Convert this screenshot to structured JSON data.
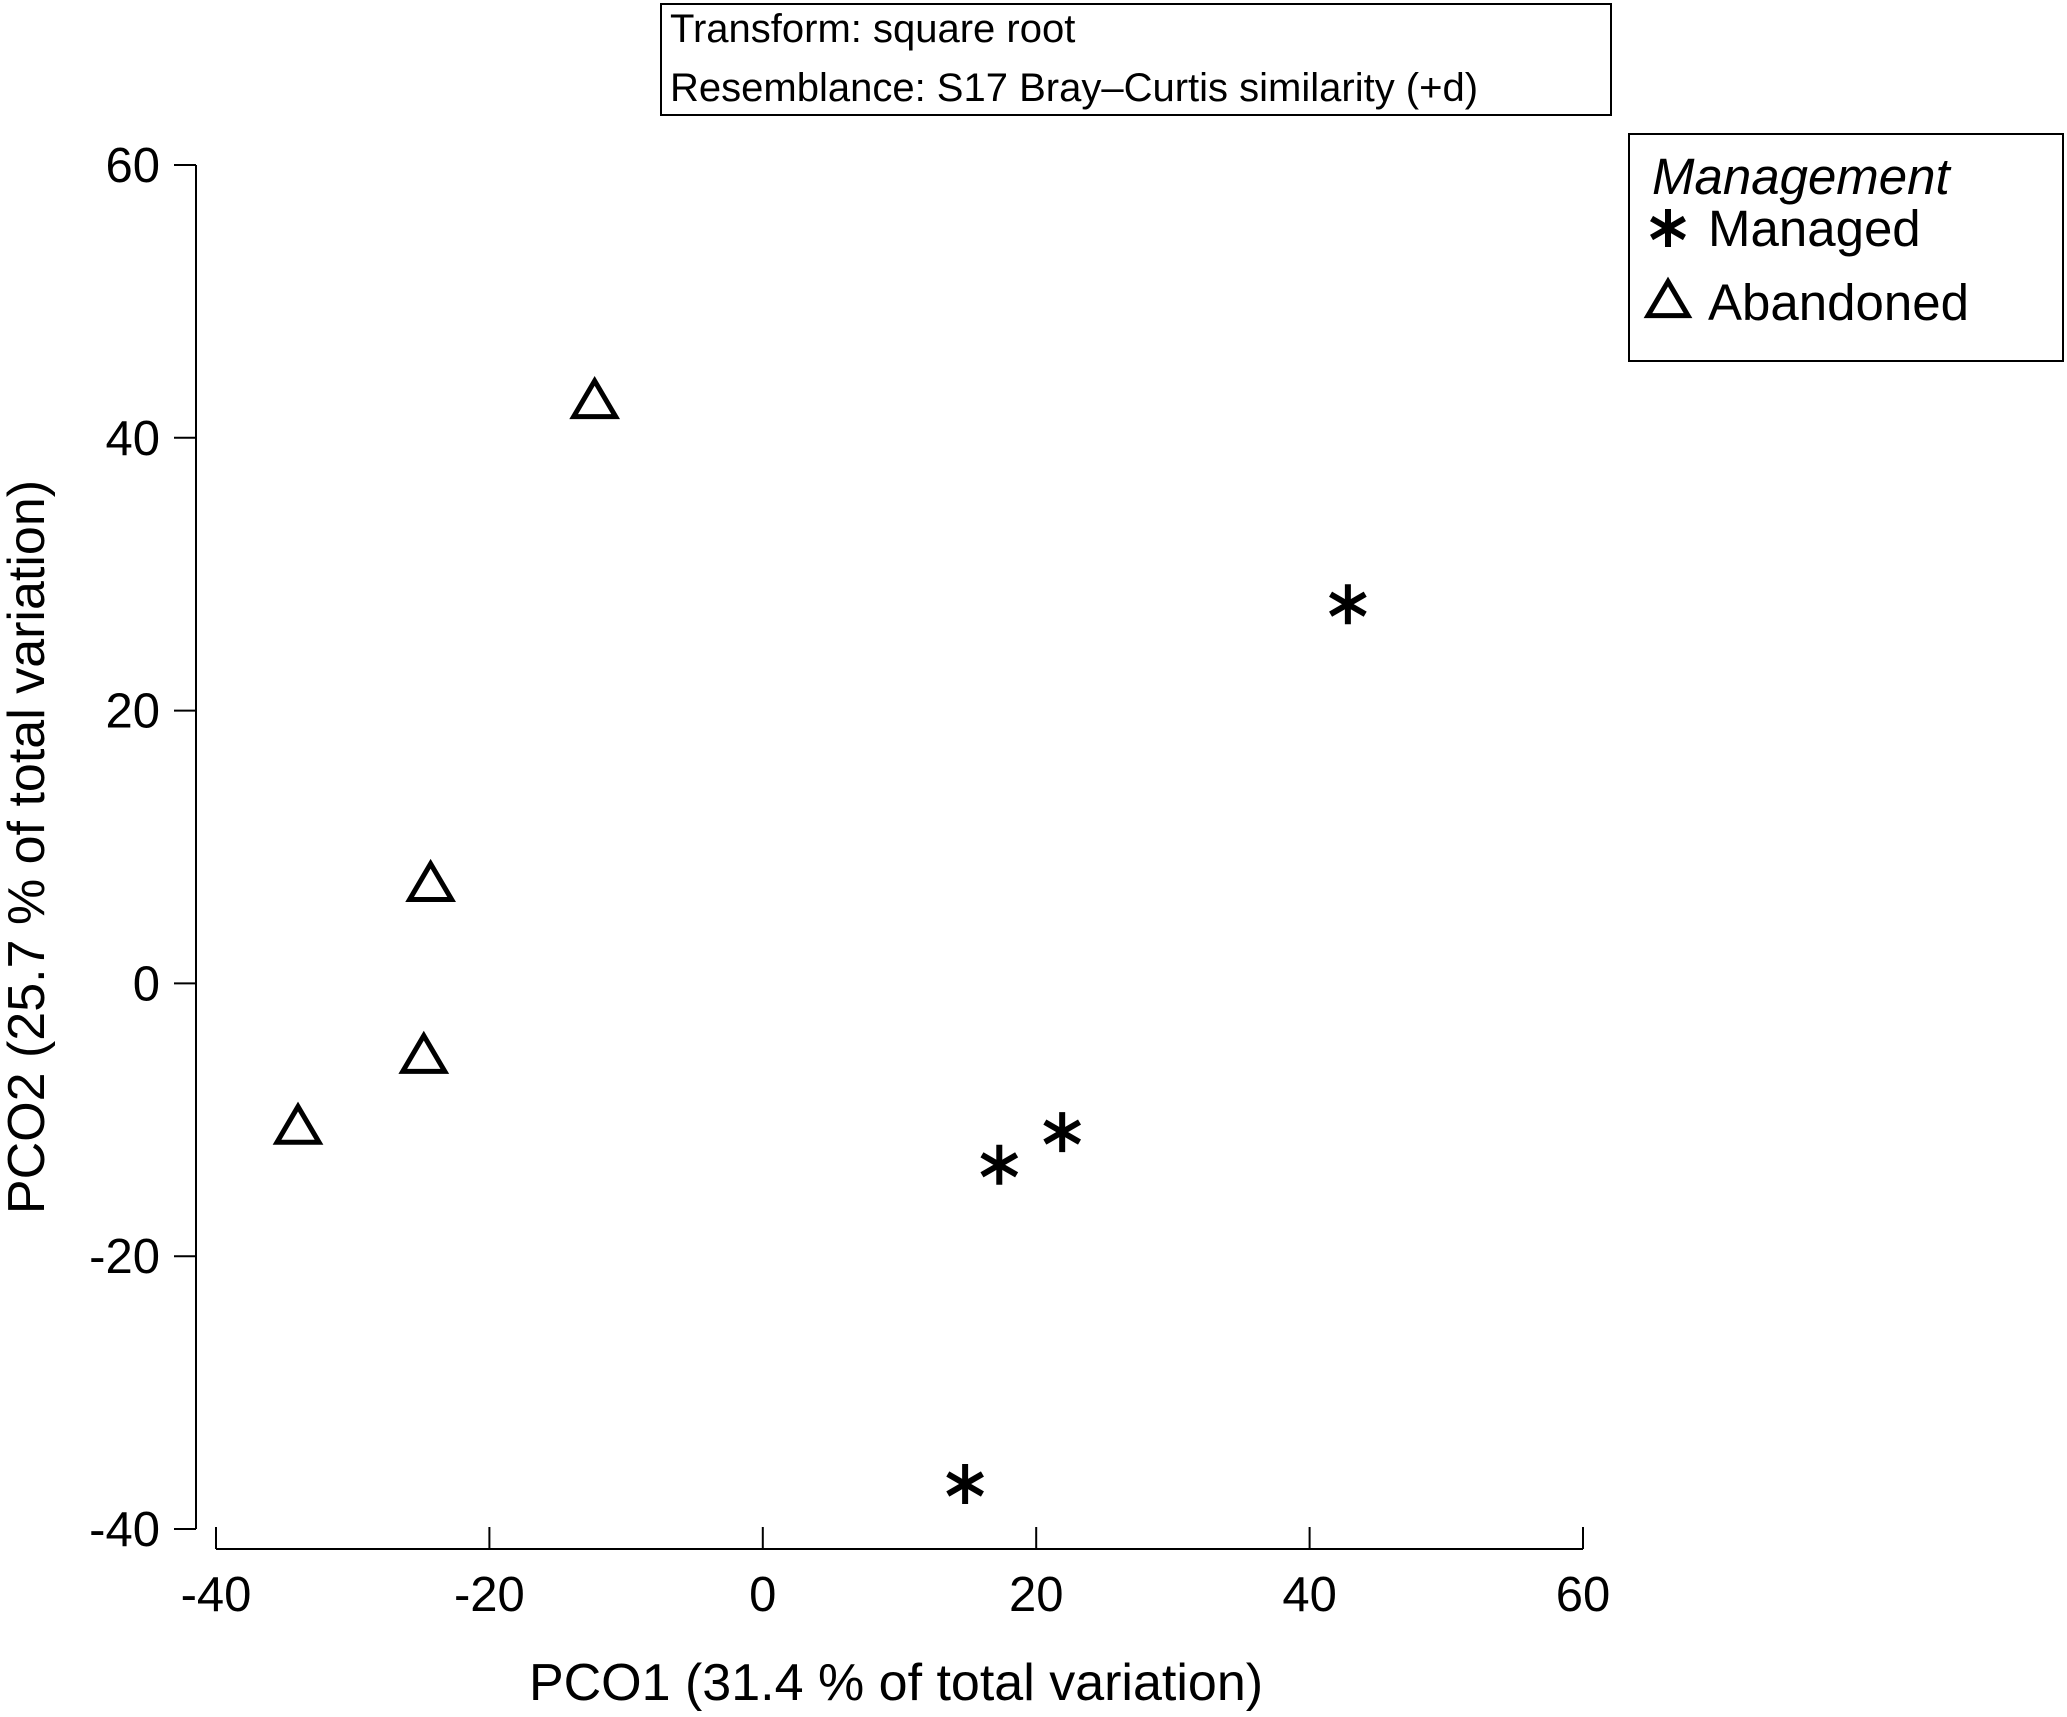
{
  "chart_data": {
    "type": "scatter",
    "xlabel": "PCO1 (31.4 % of total variation)",
    "ylabel": "PCO2 (25.7 % of total variation)",
    "xlim": [
      -40,
      60
    ],
    "ylim": [
      -40,
      60
    ],
    "x_ticks": [
      -40,
      -20,
      0,
      20,
      40,
      60
    ],
    "y_ticks": [
      -40,
      -20,
      0,
      20,
      40,
      60
    ],
    "info_lines": [
      "Transform: square root",
      "Resemblance: S17 Bray–Curtis similarity (+d)"
    ],
    "legend": {
      "title": "Management",
      "position": "top-right"
    },
    "series": [
      {
        "name": "Managed",
        "marker": "asterisk",
        "points": [
          {
            "x": 42.8,
            "y": 27.8
          },
          {
            "x": 21.9,
            "y": -10.9
          },
          {
            "x": 17.3,
            "y": -13.3
          },
          {
            "x": 14.8,
            "y": -36.7
          }
        ]
      },
      {
        "name": "Abandoned",
        "marker": "triangle",
        "points": [
          {
            "x": -12.3,
            "y": 42.6
          },
          {
            "x": -24.3,
            "y": 7.2
          },
          {
            "x": -24.8,
            "y": -5.4
          },
          {
            "x": -34.0,
            "y": -10.6
          }
        ]
      }
    ]
  },
  "colors": {
    "ink": "#000000",
    "background": "#ffffff"
  }
}
